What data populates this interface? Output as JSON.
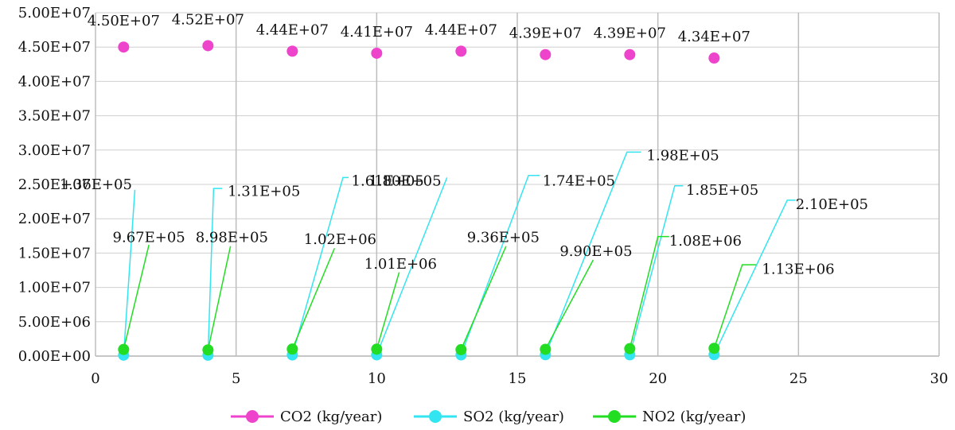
{
  "chart_data": {
    "type": "scatter",
    "x_ticks": [
      "0",
      "5",
      "10",
      "15",
      "20",
      "25",
      "30"
    ],
    "y_ticks": [
      "0.00E+00",
      "5.00E+06",
      "1.00E+07",
      "1.50E+07",
      "2.00E+07",
      "2.50E+07",
      "3.00E+07",
      "3.50E+07",
      "4.00E+07",
      "4.50E+07",
      "5.00E+07"
    ],
    "xlim": [
      0,
      30
    ],
    "ylim": [
      0,
      50000000
    ],
    "grid": "vertical and horizontal major gridlines",
    "legend_position": "bottom",
    "series": [
      {
        "name": "CO2 (kg/year)",
        "color": "#ee44cc",
        "x": [
          1,
          4,
          7,
          10,
          13,
          16,
          19,
          22
        ],
        "y": [
          45000000,
          45200000,
          44400000,
          44100000,
          44400000,
          43900000,
          43900000,
          43400000
        ],
        "labels": [
          "4.50E+07",
          "4.52E+07",
          "4.44E+07",
          "4.41E+07",
          "4.44E+07",
          "4.39E+07",
          "4.39E+07",
          "4.34E+07"
        ]
      },
      {
        "name": "SO2 (kg/year)",
        "color": "#33e5f0",
        "x": [
          1,
          4,
          7,
          10,
          13,
          16,
          19,
          22
        ],
        "y": [
          136000,
          131000,
          161000,
          180000,
          174000,
          198000,
          185000,
          210000
        ],
        "labels": [
          "1.36E+05",
          "1.31E+05",
          "1.61E+05",
          "1.80E+05",
          "1.74E+05",
          "1.98E+05",
          "1.85E+05",
          "2.10E+05"
        ]
      },
      {
        "name": "NO2 (kg/year)",
        "color": "#22dd22",
        "x": [
          1,
          4,
          7,
          10,
          13,
          16,
          19,
          22
        ],
        "y": [
          967000,
          898000,
          1020000,
          1010000,
          936000,
          990000,
          1080000,
          1130000
        ],
        "labels": [
          "9.67E+05",
          "8.98E+05",
          "1.02E+06",
          "1.01E+06",
          "9.36E+05",
          "9.90E+05",
          "1.08E+06",
          "1.13E+06"
        ]
      }
    ]
  }
}
